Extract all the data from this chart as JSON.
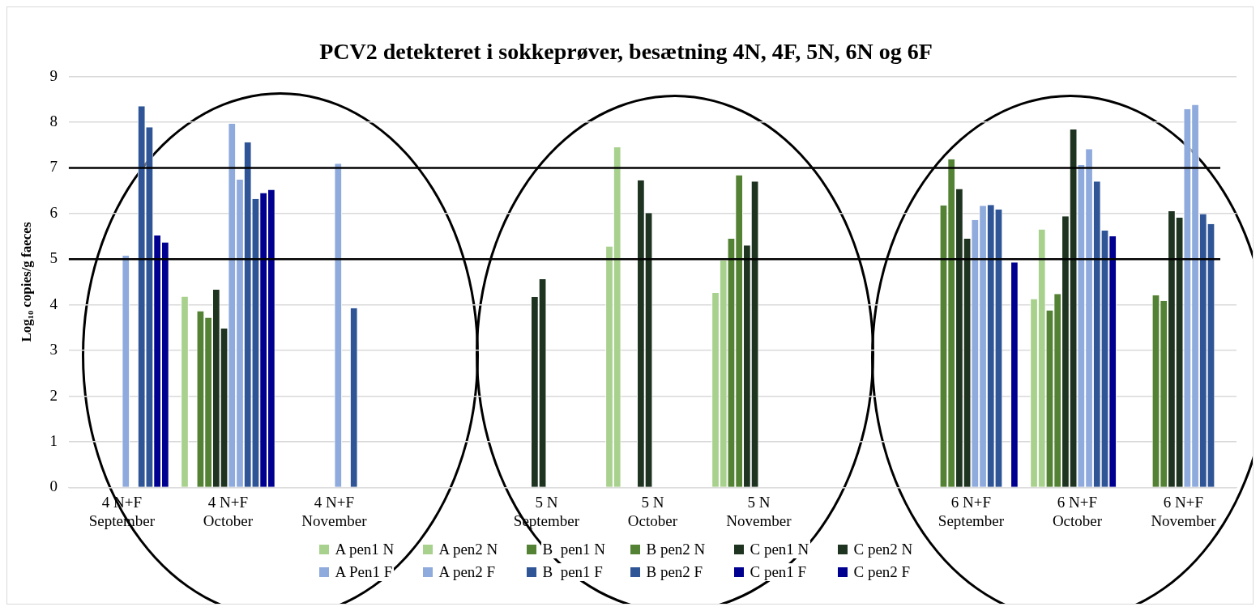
{
  "chart_data": {
    "type": "bar",
    "title": "PCV2 detekteret i sokkeprøver, besætning 4N, 4F, 5N, 6N og 6F",
    "ylabel": "Log₁₀ copies/g faeces",
    "categories": [
      "4 N+F\nSeptember",
      "4 N+F\nOctober",
      "4 N+F\nNovember",
      null,
      "5 N\nSeptember",
      "5 N\nOctober",
      "5 N\nNovember",
      null,
      "6 N+F\nSeptember",
      "6 N+F\nOctober",
      "6 N+F\nNovember"
    ],
    "series": [
      {
        "name": "A pen1 N",
        "color": "#a9d18e",
        "values": [
          null,
          4.18,
          null,
          null,
          null,
          5.28,
          4.26,
          null,
          null,
          4.13,
          null
        ]
      },
      {
        "name": "A pen2 N",
        "color": "#a9d18e",
        "values": [
          null,
          null,
          null,
          null,
          null,
          7.45,
          4.97,
          null,
          null,
          5.65,
          null
        ]
      },
      {
        "name": "B  pen1 N",
        "color": "#548235",
        "values": [
          null,
          3.86,
          null,
          null,
          null,
          null,
          5.45,
          null,
          6.18,
          3.88,
          4.21
        ]
      },
      {
        "name": "B pen2 N",
        "color": "#548235",
        "values": [
          null,
          3.72,
          null,
          null,
          null,
          null,
          6.84,
          null,
          7.19,
          4.24,
          4.09
        ]
      },
      {
        "name": "C pen1 N",
        "color": "#1e3320",
        "values": [
          null,
          4.33,
          null,
          null,
          4.17,
          6.73,
          5.3,
          null,
          6.54,
          5.94,
          6.05
        ]
      },
      {
        "name": "C pen2 N",
        "color": "#1e3320",
        "values": [
          null,
          3.48,
          null,
          null,
          4.56,
          6.01,
          6.7,
          null,
          5.45,
          7.84,
          5.91
        ]
      },
      {
        "name": "A Pen1 F",
        "color": "#8faadc",
        "values": [
          5.08,
          7.97,
          7.09,
          null,
          null,
          null,
          null,
          null,
          5.86,
          7.06,
          8.29
        ]
      },
      {
        "name": "A pen2 F",
        "color": "#8faadc",
        "values": [
          null,
          6.74,
          null,
          null,
          null,
          null,
          null,
          null,
          6.17,
          7.41,
          8.38
        ]
      },
      {
        "name": "B  pen1 F",
        "color": "#2f5597",
        "values": [
          8.35,
          7.56,
          3.93,
          null,
          null,
          null,
          null,
          null,
          6.19,
          6.7,
          5.99
        ]
      },
      {
        "name": "B pen2 F",
        "color": "#2f5597",
        "values": [
          7.89,
          6.32,
          null,
          null,
          null,
          null,
          null,
          null,
          6.09,
          5.63,
          5.77
        ]
      },
      {
        "name": "C pen1 F",
        "color": "#000090",
        "values": [
          5.52,
          6.45,
          null,
          null,
          null,
          null,
          null,
          null,
          null,
          5.5,
          null
        ]
      },
      {
        "name": "C pen2 F",
        "color": "#000090",
        "values": [
          5.37,
          6.52,
          null,
          null,
          null,
          null,
          null,
          null,
          4.93,
          null,
          null
        ]
      }
    ],
    "ylim": [
      0,
      9
    ],
    "yticks": [
      0,
      1,
      2,
      3,
      4,
      5,
      6,
      7,
      8,
      9
    ],
    "grid": "y",
    "legend": "bottom",
    "ref_lines": [
      {
        "axis": "y",
        "value": 5,
        "color": "#000000"
      },
      {
        "axis": "y",
        "value": 7,
        "color": "#000000"
      }
    ]
  }
}
